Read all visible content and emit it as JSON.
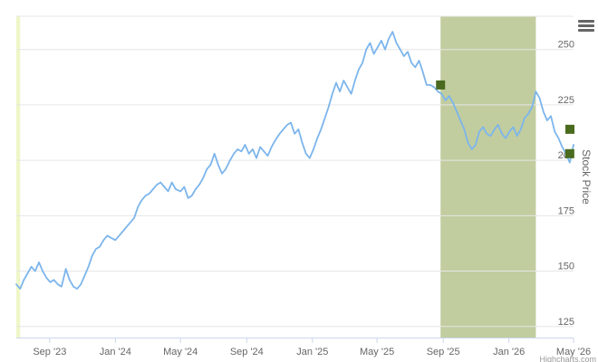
{
  "chart_data": {
    "type": "line",
    "title": "",
    "ylabel": "Stock Price",
    "xlabel": "",
    "x_range": [
      "2023-07-01",
      "2026-05-01"
    ],
    "ylim": [
      120,
      265
    ],
    "y_ticks": [
      125,
      150,
      175,
      200,
      225,
      250
    ],
    "y_tick_labels": [
      "125",
      "150",
      "175",
      "200",
      "225",
      "250"
    ],
    "x_ticks": [
      "2023-09-01",
      "2024-01-01",
      "2024-05-01",
      "2024-09-01",
      "2025-01-01",
      "2025-05-01",
      "2025-09-01",
      "2026-01-01",
      "2026-05-01"
    ],
    "x_tick_labels": [
      "Sep '23",
      "Jan '24",
      "May '24",
      "Sep '24",
      "Jan '25",
      "May '25",
      "Sep '25",
      "Jan '26",
      "May '26"
    ],
    "grid": "horizontal",
    "legend": "none",
    "series": [
      {
        "color": "#7cb5ec",
        "points": [
          [
            "2023-07-01",
            144
          ],
          [
            "2023-07-08",
            142
          ],
          [
            "2023-07-15",
            146
          ],
          [
            "2023-07-22",
            149
          ],
          [
            "2023-07-29",
            152
          ],
          [
            "2023-08-05",
            150
          ],
          [
            "2023-08-12",
            154
          ],
          [
            "2023-08-19",
            150
          ],
          [
            "2023-08-26",
            147
          ],
          [
            "2023-09-02",
            145
          ],
          [
            "2023-09-09",
            146
          ],
          [
            "2023-09-16",
            144
          ],
          [
            "2023-09-23",
            143
          ],
          [
            "2023-10-01",
            151
          ],
          [
            "2023-10-08",
            146
          ],
          [
            "2023-10-15",
            143
          ],
          [
            "2023-10-22",
            142
          ],
          [
            "2023-10-29",
            144
          ],
          [
            "2023-11-05",
            148
          ],
          [
            "2023-11-12",
            152
          ],
          [
            "2023-11-19",
            157
          ],
          [
            "2023-11-26",
            160
          ],
          [
            "2023-12-03",
            161
          ],
          [
            "2023-12-10",
            164
          ],
          [
            "2023-12-17",
            166
          ],
          [
            "2023-12-24",
            165
          ],
          [
            "2024-01-01",
            164
          ],
          [
            "2024-01-08",
            166
          ],
          [
            "2024-01-15",
            168
          ],
          [
            "2024-01-22",
            170
          ],
          [
            "2024-01-29",
            172
          ],
          [
            "2024-02-05",
            174
          ],
          [
            "2024-02-12",
            179
          ],
          [
            "2024-02-19",
            182
          ],
          [
            "2024-02-26",
            184
          ],
          [
            "2024-03-04",
            185
          ],
          [
            "2024-03-11",
            187
          ],
          [
            "2024-03-18",
            189
          ],
          [
            "2024-03-25",
            190
          ],
          [
            "2024-04-01",
            188
          ],
          [
            "2024-04-08",
            186
          ],
          [
            "2024-04-15",
            190
          ],
          [
            "2024-04-22",
            187
          ],
          [
            "2024-05-01",
            186
          ],
          [
            "2024-05-08",
            188
          ],
          [
            "2024-05-15",
            183
          ],
          [
            "2024-05-22",
            184
          ],
          [
            "2024-05-29",
            187
          ],
          [
            "2024-06-05",
            189
          ],
          [
            "2024-06-12",
            192
          ],
          [
            "2024-06-19",
            196
          ],
          [
            "2024-06-26",
            198
          ],
          [
            "2024-07-03",
            203
          ],
          [
            "2024-07-10",
            198
          ],
          [
            "2024-07-17",
            194
          ],
          [
            "2024-07-24",
            196
          ],
          [
            "2024-08-01",
            200
          ],
          [
            "2024-08-08",
            203
          ],
          [
            "2024-08-15",
            205
          ],
          [
            "2024-08-22",
            204
          ],
          [
            "2024-08-29",
            207
          ],
          [
            "2024-09-05",
            203
          ],
          [
            "2024-09-12",
            205
          ],
          [
            "2024-09-19",
            201
          ],
          [
            "2024-09-26",
            206
          ],
          [
            "2024-10-03",
            204
          ],
          [
            "2024-10-10",
            202
          ],
          [
            "2024-10-17",
            206
          ],
          [
            "2024-10-24",
            209
          ],
          [
            "2024-11-01",
            212
          ],
          [
            "2024-11-08",
            214
          ],
          [
            "2024-11-15",
            216
          ],
          [
            "2024-11-22",
            217
          ],
          [
            "2024-11-29",
            212
          ],
          [
            "2024-12-06",
            214
          ],
          [
            "2024-12-13",
            208
          ],
          [
            "2024-12-20",
            203
          ],
          [
            "2024-12-27",
            201
          ],
          [
            "2025-01-03",
            205
          ],
          [
            "2025-01-10",
            210
          ],
          [
            "2025-01-17",
            214
          ],
          [
            "2025-01-24",
            219
          ],
          [
            "2025-01-31",
            224
          ],
          [
            "2025-02-07",
            230
          ],
          [
            "2025-02-14",
            235
          ],
          [
            "2025-02-21",
            231
          ],
          [
            "2025-02-28",
            236
          ],
          [
            "2025-03-07",
            233
          ],
          [
            "2025-03-14",
            230
          ],
          [
            "2025-03-21",
            236
          ],
          [
            "2025-03-28",
            241
          ],
          [
            "2025-04-04",
            244
          ],
          [
            "2025-04-11",
            250
          ],
          [
            "2025-04-18",
            253
          ],
          [
            "2025-04-25",
            248
          ],
          [
            "2025-05-02",
            251
          ],
          [
            "2025-05-09",
            254
          ],
          [
            "2025-05-16",
            250
          ],
          [
            "2025-05-23",
            255
          ],
          [
            "2025-05-30",
            258
          ],
          [
            "2025-06-06",
            253
          ],
          [
            "2025-06-13",
            250
          ],
          [
            "2025-06-20",
            247
          ],
          [
            "2025-06-27",
            249
          ],
          [
            "2025-07-04",
            244
          ],
          [
            "2025-07-11",
            242
          ],
          [
            "2025-07-18",
            245
          ],
          [
            "2025-07-25",
            240
          ],
          [
            "2025-08-01",
            234
          ],
          [
            "2025-08-08",
            234
          ],
          [
            "2025-08-15",
            233
          ],
          [
            "2025-08-22",
            231
          ],
          [
            "2025-08-29",
            230
          ],
          [
            "2025-09-05",
            227
          ],
          [
            "2025-09-12",
            229
          ],
          [
            "2025-09-19",
            226
          ],
          [
            "2025-09-26",
            222
          ],
          [
            "2025-10-03",
            218
          ],
          [
            "2025-10-10",
            214
          ],
          [
            "2025-10-17",
            208
          ],
          [
            "2025-10-24",
            205
          ],
          [
            "2025-10-31",
            207
          ],
          [
            "2025-11-07",
            213
          ],
          [
            "2025-11-14",
            215
          ],
          [
            "2025-11-21",
            212
          ],
          [
            "2025-11-28",
            211
          ],
          [
            "2025-12-05",
            214
          ],
          [
            "2025-12-12",
            216
          ],
          [
            "2025-12-19",
            212
          ],
          [
            "2025-12-26",
            210
          ],
          [
            "2026-01-02",
            213
          ],
          [
            "2026-01-09",
            215
          ],
          [
            "2026-01-16",
            211
          ],
          [
            "2026-01-23",
            214
          ],
          [
            "2026-01-30",
            219
          ],
          [
            "2026-02-06",
            221
          ],
          [
            "2026-02-13",
            224
          ],
          [
            "2026-02-20",
            231
          ],
          [
            "2026-02-27",
            228
          ],
          [
            "2026-03-06",
            222
          ],
          [
            "2026-03-13",
            218
          ],
          [
            "2026-03-20",
            220
          ],
          [
            "2026-03-27",
            213
          ],
          [
            "2026-04-03",
            210
          ],
          [
            "2026-04-10",
            206
          ],
          [
            "2026-04-17",
            203
          ],
          [
            "2026-04-24",
            199
          ],
          [
            "2026-05-01",
            207
          ]
        ]
      }
    ],
    "highlight_bands": [
      {
        "from": "2023-07-01",
        "to": "2023-07-08",
        "color": "#eef7c7"
      },
      {
        "from": "2025-08-27",
        "to": "2026-02-20",
        "color": "#c1cd9f"
      }
    ],
    "markers": [
      {
        "x": "2025-08-27",
        "y": 234,
        "color": "#4a6b1e",
        "shape": "square"
      },
      {
        "x": "2026-05-01",
        "y": 214,
        "color": "#4a6b1e",
        "shape": "square"
      },
      {
        "x": "2026-04-24",
        "y": 203,
        "color": "#4a6b1e",
        "shape": "square"
      }
    ],
    "credits": "Highcharts.com"
  }
}
